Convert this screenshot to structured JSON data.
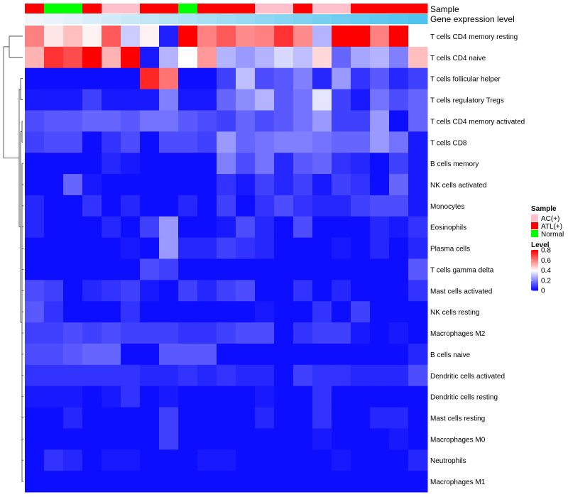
{
  "chart_data": {
    "type": "heatmap",
    "title": "",
    "annotation_tracks": [
      {
        "name": "Sample",
        "colors": {
          "AC(+)": "#ffc0cb",
          "ATL(+)": "#ff0000",
          "Normal": "#00ff00"
        },
        "values": [
          "ATL(+)",
          "Normal",
          "Normal",
          "ATL(+)",
          "AC(+)",
          "AC(+)",
          "ATL(+)",
          "ATL(+)",
          "Normal",
          "ATL(+)",
          "ATL(+)",
          "ATL(+)",
          "AC(+)",
          "AC(+)",
          "ATL(+)",
          "AC(+)",
          "AC(+)",
          "ATL(+)",
          "ATL(+)",
          "ATL(+)",
          "ATL(+)"
        ]
      },
      {
        "name": "Gene expression level",
        "gradient": [
          "#f2f6fb",
          "#4dc3ee"
        ]
      }
    ],
    "rows": [
      "T cells CD4 memory resting",
      "T cells CD4 naive",
      "T cells follicular helper",
      "T cells regulatory  Tregs",
      "T cells CD4 memory activated",
      "T cells CD8",
      "B cells memory",
      "NK cells activated",
      "Monocytes",
      "Eosinophils",
      "Plasma cells",
      "T cells gamma delta",
      "Mast cells activated",
      "NK cells resting",
      "Macrophages M2",
      "B cells naive",
      "Dendritic cells activated",
      "Dendritic cells resting",
      "Mast cells resting",
      "Macrophages M0",
      "Neutrophils",
      "Macrophages M1"
    ],
    "values": [
      [
        0.6,
        0.44,
        0.5,
        0.42,
        0.66,
        0.32,
        0.42,
        0.05,
        0.8,
        0.6,
        0.66,
        0.58,
        0.6,
        0.72,
        0.58,
        0.28,
        0.8,
        0.8,
        0.6,
        0.8,
        0.4
      ],
      [
        0.52,
        0.72,
        0.68,
        0.8,
        0.52,
        0.8,
        0.04,
        0.28,
        0.4,
        0.56,
        0.28,
        0.24,
        0.28,
        0.34,
        0.3,
        0.46,
        0.16,
        0.26,
        0.28,
        0.2,
        0.5
      ],
      [
        0.02,
        0.02,
        0.02,
        0.02,
        0.02,
        0.02,
        0.74,
        0.62,
        0.02,
        0.02,
        0.1,
        0.3,
        0.12,
        0.14,
        0.2,
        0.06,
        0.24,
        0.08,
        0.14,
        0.06,
        0.1
      ],
      [
        0.04,
        0.04,
        0.04,
        0.1,
        0.04,
        0.04,
        0.04,
        0.2,
        0.04,
        0.04,
        0.16,
        0.22,
        0.28,
        0.14,
        0.18,
        0.36,
        0.1,
        0.04,
        0.18,
        0.12,
        0.16
      ],
      [
        0.12,
        0.14,
        0.14,
        0.16,
        0.16,
        0.14,
        0.18,
        0.18,
        0.14,
        0.12,
        0.1,
        0.16,
        0.12,
        0.14,
        0.18,
        0.24,
        0.1,
        0.1,
        0.24,
        0.02,
        0.16
      ],
      [
        0.1,
        0.12,
        0.12,
        0.02,
        0.08,
        0.12,
        0.02,
        0.12,
        0.12,
        0.1,
        0.24,
        0.16,
        0.18,
        0.2,
        0.2,
        0.18,
        0.16,
        0.16,
        0.24,
        0.18,
        0.04
      ],
      [
        0.02,
        0.02,
        0.02,
        0.02,
        0.06,
        0.04,
        0.02,
        0.02,
        0.02,
        0.02,
        0.2,
        0.12,
        0.18,
        0.06,
        0.14,
        0.16,
        0.08,
        0.06,
        0.02,
        0.1,
        0.04
      ],
      [
        0.02,
        0.02,
        0.16,
        0.04,
        0.02,
        0.02,
        0.02,
        0.02,
        0.02,
        0.02,
        0.08,
        0.04,
        0.1,
        0.06,
        0.1,
        0.04,
        0.1,
        0.08,
        0.02,
        0.16,
        0.04
      ],
      [
        0.06,
        0.02,
        0.02,
        0.08,
        0.02,
        0.06,
        0.02,
        0.02,
        0.06,
        0.02,
        0.1,
        0.02,
        0.08,
        0.12,
        0.08,
        0.06,
        0.06,
        0.1,
        0.12,
        0.12,
        0.04
      ],
      [
        0.06,
        0.02,
        0.02,
        0.02,
        0.06,
        0.02,
        0.1,
        0.24,
        0.02,
        0.02,
        0.04,
        0.12,
        0.06,
        0.02,
        0.12,
        0.02,
        0.02,
        0.02,
        0.06,
        0.04,
        0.08
      ],
      [
        0.02,
        0.02,
        0.02,
        0.02,
        0.02,
        0.04,
        0.02,
        0.24,
        0.06,
        0.06,
        0.1,
        0.08,
        0.06,
        0.02,
        0.02,
        0.02,
        0.04,
        0.02,
        0.06,
        0.02,
        0.06
      ],
      [
        0.02,
        0.02,
        0.02,
        0.02,
        0.02,
        0.02,
        0.12,
        0.1,
        0.02,
        0.02,
        0.02,
        0.02,
        0.02,
        0.02,
        0.02,
        0.02,
        0.02,
        0.02,
        0.02,
        0.02,
        0.14
      ],
      [
        0.12,
        0.1,
        0.02,
        0.06,
        0.08,
        0.1,
        0.04,
        0.02,
        0.1,
        0.06,
        0.1,
        0.12,
        0.02,
        0.02,
        0.08,
        0.02,
        0.06,
        0.02,
        0.02,
        0.02,
        0.08
      ],
      [
        0.14,
        0.08,
        0.02,
        0.02,
        0.02,
        0.08,
        0.02,
        0.02,
        0.02,
        0.02,
        0.02,
        0.02,
        0.04,
        0.02,
        0.02,
        0.08,
        0.02,
        0.1,
        0.02,
        0.02,
        0.02
      ],
      [
        0.1,
        0.1,
        0.12,
        0.1,
        0.12,
        0.1,
        0.1,
        0.1,
        0.08,
        0.08,
        0.1,
        0.12,
        0.12,
        0.02,
        0.08,
        0.1,
        0.1,
        0.04,
        0.02,
        0.04,
        0.02
      ],
      [
        0.12,
        0.12,
        0.14,
        0.16,
        0.16,
        0.02,
        0.02,
        0.14,
        0.14,
        0.14,
        0.02,
        0.02,
        0.02,
        0.02,
        0.02,
        0.02,
        0.02,
        0.02,
        0.02,
        0.02,
        0.06
      ],
      [
        0.08,
        0.08,
        0.08,
        0.08,
        0.08,
        0.08,
        0.06,
        0.06,
        0.08,
        0.06,
        0.08,
        0.06,
        0.06,
        0.02,
        0.1,
        0.08,
        0.08,
        0.06,
        0.06,
        0.06,
        0.12
      ],
      [
        0.04,
        0.04,
        0.04,
        0.02,
        0.04,
        0.08,
        0.02,
        0.04,
        0.02,
        0.02,
        0.02,
        0.02,
        0.04,
        0.02,
        0.02,
        0.08,
        0.02,
        0.02,
        0.02,
        0.02,
        0.02
      ],
      [
        0.02,
        0.02,
        0.06,
        0.02,
        0.02,
        0.02,
        0.02,
        0.1,
        0.02,
        0.02,
        0.02,
        0.02,
        0.06,
        0.02,
        0.02,
        0.08,
        0.02,
        0.02,
        0.06,
        0.06,
        0.02
      ],
      [
        0.02,
        0.02,
        0.02,
        0.02,
        0.02,
        0.02,
        0.02,
        0.1,
        0.02,
        0.02,
        0.02,
        0.02,
        0.02,
        0.02,
        0.02,
        0.04,
        0.02,
        0.02,
        0.02,
        0.04,
        0.02
      ],
      [
        0.02,
        0.08,
        0.06,
        0.02,
        0.04,
        0.04,
        0.02,
        0.02,
        0.02,
        0.04,
        0.04,
        0.02,
        0.02,
        0.02,
        0.02,
        0.02,
        0.04,
        0.02,
        0.02,
        0.02,
        0.06
      ],
      [
        0.02,
        0.02,
        0.02,
        0.02,
        0.02,
        0.02,
        0.02,
        0.02,
        0.02,
        0.02,
        0.02,
        0.02,
        0.02,
        0.02,
        0.02,
        0.02,
        0.02,
        0.02,
        0.02,
        0.02,
        0.02
      ]
    ],
    "color_scale": {
      "low": "#0000ff",
      "mid": "#ffffff",
      "high": "#ff0000",
      "domain": [
        0,
        0.8
      ]
    },
    "legend": {
      "sample_title": "Sample",
      "sample_entries": [
        {
          "label": "AC(+)",
          "color": "#ffc0cb"
        },
        {
          "label": "ATL(+)",
          "color": "#ff0000"
        },
        {
          "label": "Normal",
          "color": "#00ff00"
        }
      ],
      "level_title": "Level",
      "level_ticks": [
        "0.8",
        "0.6",
        "0.4",
        "0.2",
        "0"
      ],
      "level_tick_values": [
        0.8,
        0.6,
        0.4,
        0.2,
        0
      ]
    }
  }
}
